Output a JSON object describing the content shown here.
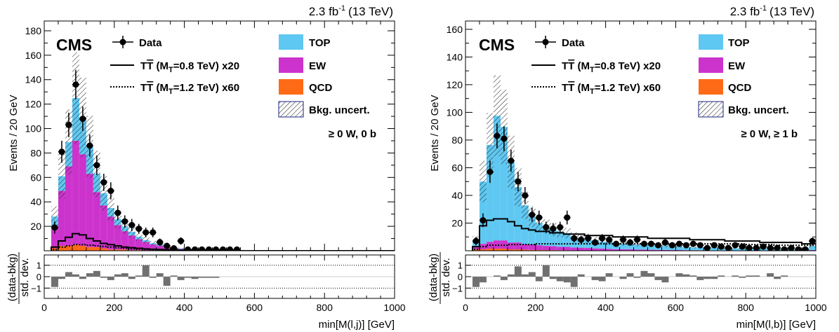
{
  "colors": {
    "top": "#5fc8f2",
    "ew": "#cc33cc",
    "qcd": "#ff6a16",
    "ratio_bar": "#707070",
    "uncert_border": "#1a237e"
  },
  "chart_data": [
    {
      "type": "bar",
      "stacked": true,
      "lumi": "2.3 fb",
      "lumi_sup": "-1",
      "energy": "(13 TeV)",
      "experiment": "CMS",
      "category_label": "≥ 0 W, 0 b",
      "ylabel": "Events / 20 GeV",
      "xlabel": "min[M(l,j)] [GeV]",
      "xlim": [
        0,
        1000
      ],
      "ylim": [
        0,
        188
      ],
      "x_ticks": [
        "0",
        "200",
        "400",
        "600",
        "800",
        "1000"
      ],
      "y_ticks": [
        "20",
        "40",
        "60",
        "80",
        "100",
        "120",
        "140",
        "160",
        "180"
      ],
      "ratio_ylabel_num": "(data-bkg)",
      "ratio_ylabel_den": "std. dev.",
      "ratio_ylim": [
        -1.9,
        1.9
      ],
      "ratio_ticks": [
        "1",
        "0",
        "−1"
      ],
      "legend": {
        "data": "Data",
        "sig1_prefix": "T",
        "sig1_bar": "T",
        "sig1_open": " (M",
        "sig1_sub": "T",
        "sig1_rest": "=0.8 TeV) x20",
        "sig2_prefix": "T",
        "sig2_bar": "T",
        "sig2_open": " (M",
        "sig2_sub": "T",
        "sig2_rest": "=1.2 TeV) x60",
        "top": "TOP",
        "ew": "EW",
        "qcd": "QCD",
        "uncert": "Bkg. uncert."
      },
      "bin_edges_start": 20,
      "bin_width": 20,
      "series": [
        {
          "key": "qcd",
          "values": [
            2,
            4,
            4,
            5,
            4,
            3,
            3,
            2,
            1,
            1,
            1,
            0.5,
            0.5,
            0.3,
            0.2,
            0.1,
            0.1,
            0.1,
            0,
            0,
            0,
            0,
            0,
            0,
            0,
            0,
            0,
            0,
            0,
            0,
            0,
            0,
            0,
            0,
            0,
            0,
            0,
            0,
            0,
            0,
            0,
            0,
            0,
            0,
            0,
            0,
            0,
            0,
            0
          ]
        },
        {
          "key": "ew",
          "values": [
            18,
            45,
            65,
            85,
            75,
            60,
            45,
            35,
            27,
            20,
            15,
            12,
            9,
            7,
            5,
            4,
            3,
            2,
            1.5,
            1,
            1,
            0.7,
            0.5,
            0.5,
            0.4,
            0.3,
            0.2,
            0.2,
            0.1,
            0.1,
            0,
            0,
            0,
            0,
            0,
            0,
            0,
            0,
            0,
            0,
            0,
            0,
            0,
            0,
            0,
            0,
            0,
            0,
            0
          ]
        },
        {
          "key": "top",
          "values": [
            8,
            12,
            20,
            35,
            30,
            22,
            15,
            10,
            7,
            5,
            4,
            3,
            2,
            1.5,
            1,
            1,
            0.8,
            0.5,
            0.4,
            0.3,
            0.2,
            0.2,
            0.1,
            0.1,
            0.1,
            0.1,
            0,
            0,
            0,
            0,
            0,
            0,
            0,
            0,
            0,
            0,
            0,
            0,
            0,
            0,
            0,
            0,
            0,
            0,
            0,
            0,
            0,
            0,
            0
          ]
        }
      ],
      "uncertainty_rel": 0.3,
      "signal1": [
        3,
        8,
        11,
        14,
        13,
        10,
        8,
        6,
        5,
        4,
        3,
        2.5,
        2,
        1.5,
        1.2,
        1,
        0.8,
        0.6,
        0.5,
        0.4,
        0.3,
        0.3,
        0.2,
        0.2,
        0.1,
        0.1,
        0.1,
        0,
        0,
        0,
        0,
        0,
        0,
        0,
        0,
        0,
        0,
        0,
        0,
        0,
        0,
        0,
        0,
        0,
        0,
        0,
        0,
        0,
        0
      ],
      "signal2": [
        1,
        3,
        4,
        5,
        5,
        4.5,
        4,
        3.5,
        3,
        2.5,
        2,
        1.5,
        1.2,
        1,
        0.8,
        0.6,
        0.5,
        0.4,
        0.3,
        0.2,
        0.2,
        0.1,
        0.1,
        0,
        0,
        0,
        0,
        0,
        0,
        0,
        0,
        0,
        0,
        0,
        0,
        0,
        0,
        0,
        0,
        0,
        0,
        0,
        0,
        0,
        0,
        0,
        0,
        0,
        0
      ],
      "data_points": {
        "x": [
          30,
          50,
          70,
          90,
          110,
          130,
          150,
          170,
          190,
          210,
          230,
          250,
          270,
          290,
          310,
          330,
          350,
          370,
          390,
          410,
          430,
          450,
          470,
          490,
          510,
          530,
          550,
          570,
          590
        ],
        "y": [
          19,
          81,
          103,
          136,
          108,
          86,
          70,
          56,
          49,
          31,
          24,
          21,
          18,
          15,
          15,
          7,
          4,
          2,
          8,
          1,
          1,
          1,
          1,
          1,
          1,
          1,
          1,
          0,
          0
        ],
        "err": [
          5,
          9,
          10,
          12,
          10,
          9,
          8,
          7,
          7,
          6,
          5,
          5,
          4,
          4,
          4,
          3,
          2,
          1.5,
          3,
          1,
          1,
          1,
          1,
          1,
          1,
          1,
          1,
          0,
          0
        ]
      },
      "ratio_values": [
        -0.9,
        -0.2,
        0.4,
        0.2,
        -0.2,
        0.3,
        0.5,
        -0.1,
        -0.3,
        0.2,
        0.3,
        -0.2,
        0.1,
        1.0,
        -0.1,
        0.3,
        -0.8,
        0.1,
        -0.3,
        -0.1,
        -0.2,
        -0.1,
        -0.1,
        -0.1,
        0,
        0,
        0,
        0,
        0,
        0,
        0,
        0,
        0,
        0,
        0,
        0,
        0,
        0,
        0,
        0,
        0,
        0,
        0,
        0,
        0,
        0,
        0,
        0,
        0
      ]
    },
    {
      "type": "bar",
      "stacked": true,
      "lumi": "2.3 fb",
      "lumi_sup": "-1",
      "energy": "(13 TeV)",
      "experiment": "CMS",
      "category_label": "≥ 0 W, ≥ 1 b",
      "ylabel": "Events / 20 GeV",
      "xlabel": "min[M(l,b)] [GeV]",
      "xlim": [
        0,
        1000
      ],
      "ylim": [
        0,
        166
      ],
      "x_ticks": [
        "0",
        "200",
        "400",
        "600",
        "800",
        "1000"
      ],
      "y_ticks": [
        "20",
        "40",
        "60",
        "80",
        "100",
        "120",
        "140",
        "160"
      ],
      "ratio_ylabel_num": "(data-bkg)",
      "ratio_ylabel_den": "std. dev.",
      "ratio_ylim": [
        -1.9,
        1.9
      ],
      "ratio_ticks": [
        "1",
        "0",
        "−1"
      ],
      "legend": {
        "data": "Data",
        "sig1_prefix": "T",
        "sig1_bar": "T",
        "sig1_open": " (M",
        "sig1_sub": "T",
        "sig1_rest": "=0.8 TeV) x20",
        "sig2_prefix": "T",
        "sig2_bar": "T",
        "sig2_open": " (M",
        "sig2_sub": "T",
        "sig2_rest": "=1.2 TeV) x60",
        "top": "TOP",
        "ew": "EW",
        "qcd": "QCD",
        "uncert": "Bkg. uncert."
      },
      "bin_edges_start": 20,
      "bin_width": 20,
      "series": [
        {
          "key": "qcd",
          "values": [
            1,
            1,
            1.5,
            1.5,
            1.5,
            1,
            1,
            0.8,
            0.6,
            0.5,
            0.5,
            0.4,
            0.4,
            0.3,
            0.3,
            0.2,
            0.2,
            0.2,
            0.1,
            0.1,
            0.1,
            0.1,
            0.1,
            0.1,
            0.1,
            0,
            0,
            0,
            0,
            0,
            0,
            0,
            0,
            0,
            0,
            0,
            0,
            0,
            0,
            0,
            0,
            0,
            0,
            0,
            0,
            0,
            0,
            0,
            0
          ]
        },
        {
          "key": "ew",
          "values": [
            2,
            4,
            5,
            6,
            6,
            5,
            5,
            4,
            4,
            3.5,
            3,
            3,
            2.5,
            2.5,
            2,
            2,
            1.8,
            1.5,
            1.5,
            1.2,
            1,
            1,
            1,
            0.8,
            0.8,
            0.7,
            0.6,
            0.6,
            0.5,
            0.5,
            0.4,
            0.4,
            0.4,
            0.3,
            0.3,
            0.3,
            0.3,
            0.2,
            0.2,
            0.2,
            0.2,
            0.2,
            0.2,
            0.2,
            0.2,
            0.2,
            0.2,
            0.2,
            0.5
          ]
        },
        {
          "key": "top",
          "values": [
            5,
            45,
            70,
            90,
            82,
            58,
            40,
            28,
            20,
            16,
            14,
            12,
            11,
            10,
            8,
            7,
            6,
            6,
            5,
            5,
            4,
            4,
            4,
            3.5,
            3.5,
            3,
            3,
            3,
            2.5,
            2.5,
            2,
            2,
            2,
            2,
            2,
            1.5,
            1.5,
            1.5,
            1.5,
            1.5,
            1.5,
            1.5,
            1,
            1,
            1,
            1,
            1,
            1,
            3
          ]
        }
      ],
      "uncertainty_rel": 0.3,
      "signal1": [
        3,
        18,
        22,
        23,
        23,
        21,
        18,
        16,
        15,
        14,
        14,
        13,
        13,
        12,
        12,
        12,
        11,
        11,
        11,
        11,
        10,
        10,
        10,
        10,
        10,
        9,
        9,
        9,
        9,
        9,
        9,
        8,
        8,
        8,
        8,
        8,
        7,
        7,
        7,
        7,
        7,
        6,
        6,
        6,
        6,
        6,
        6,
        5,
        5
      ],
      "signal2": [
        1,
        3,
        4,
        4,
        4,
        4.5,
        4.5,
        4.5,
        4.5,
        5,
        5,
        5,
        5,
        5,
        5,
        5,
        5,
        5,
        5,
        5,
        5,
        5,
        5,
        5,
        5,
        5,
        5,
        5,
        5,
        5,
        5,
        5,
        5,
        5,
        5,
        5,
        5,
        5,
        5,
        4.5,
        4.5,
        4.5,
        4.5,
        4,
        4,
        4,
        4,
        4,
        4
      ],
      "data_points": {
        "x": [
          30,
          50,
          70,
          90,
          110,
          130,
          150,
          170,
          190,
          210,
          230,
          250,
          270,
          290,
          310,
          330,
          350,
          370,
          390,
          410,
          430,
          450,
          470,
          490,
          510,
          530,
          550,
          570,
          590,
          610,
          630,
          650,
          670,
          690,
          710,
          730,
          750,
          770,
          790,
          810,
          830,
          850,
          870,
          890,
          910,
          930,
          950,
          970,
          990
        ],
        "y": [
          7,
          22,
          57,
          83,
          81,
          65,
          50,
          40,
          26,
          24,
          17,
          16,
          17,
          24,
          9,
          8,
          9,
          6,
          9,
          8,
          5,
          8,
          6,
          8,
          5,
          5,
          4,
          6,
          4,
          5,
          4,
          5,
          4,
          2,
          4,
          3,
          2,
          4,
          3,
          2,
          2,
          3,
          2,
          2,
          1,
          2,
          1,
          1,
          7
        ],
        "err": [
          3,
          5,
          8,
          9,
          9,
          8,
          7,
          6,
          5,
          5,
          4,
          4,
          4,
          5,
          3,
          3,
          3,
          2.5,
          3,
          3,
          2.2,
          3,
          2.5,
          3,
          2.2,
          2.2,
          2,
          2.5,
          2,
          2.2,
          2,
          2.2,
          2,
          1.5,
          2,
          1.8,
          1.5,
          2,
          1.8,
          1.5,
          1.5,
          1.8,
          1.5,
          1.5,
          1,
          1.5,
          1,
          1,
          2.5
        ]
      },
      "ratio_values": [
        -0.9,
        -0.5,
        0,
        0.1,
        -0.3,
        0.2,
        0.9,
        0.2,
        0.4,
        -0.4,
        1.0,
        -0.2,
        -0.4,
        -0.5,
        -0.9,
        0.2,
        0,
        -0.3,
        -0.4,
        0.3,
        0,
        -0.2,
        0.3,
        -0.1,
        0.5,
        0.3,
        -0.3,
        -0.5,
        0,
        0.3,
        0.2,
        0.1,
        -0.3,
        -0.2,
        -0.2,
        0.1,
        0,
        0.1,
        -0.1,
        0.1,
        0.1,
        0,
        0.3,
        -0.2,
        0.1,
        0,
        0,
        0,
        0
      ]
    }
  ]
}
